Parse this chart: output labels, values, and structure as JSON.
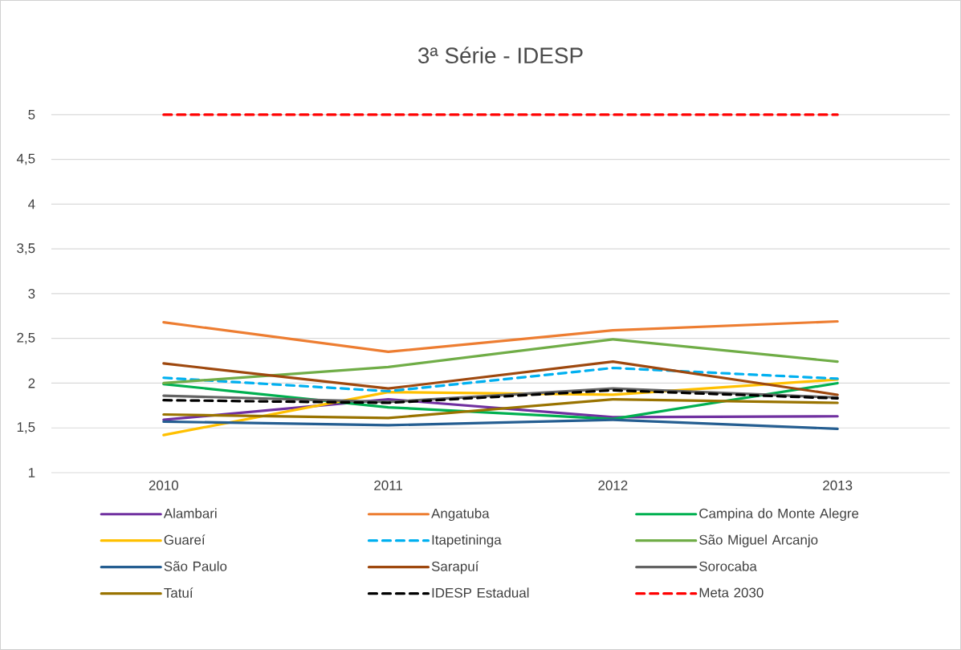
{
  "chart_data": {
    "type": "line",
    "title": "3ª Série - IDESP",
    "categories": [
      "2010",
      "2011",
      "2012",
      "2013"
    ],
    "ylim": [
      1,
      5
    ],
    "yticks": [
      {
        "value": 1,
        "label": "1"
      },
      {
        "value": 1.5,
        "label": "1,5"
      },
      {
        "value": 2,
        "label": "2"
      },
      {
        "value": 2.5,
        "label": "2,5"
      },
      {
        "value": 3,
        "label": "3"
      },
      {
        "value": 3.5,
        "label": "3,5"
      },
      {
        "value": 4,
        "label": "4"
      },
      {
        "value": 4.5,
        "label": "4,5"
      },
      {
        "value": 5,
        "label": "5"
      }
    ],
    "grid": "y",
    "legend": "bottom",
    "line_style": "solid",
    "series": [
      {
        "name": "Alambari",
        "color": "#7030a0",
        "values": [
          1.59,
          1.82,
          1.62,
          1.63
        ]
      },
      {
        "name": "Angatuba",
        "color": "#ed7d31",
        "values": [
          2.68,
          2.35,
          2.59,
          2.69
        ]
      },
      {
        "name": "Campina do Monte Alegre",
        "color": "#00b050",
        "values": [
          1.99,
          1.73,
          1.6,
          2.0
        ]
      },
      {
        "name": "Guareí",
        "color": "#ffc000",
        "values": [
          1.42,
          1.9,
          1.87,
          2.04
        ]
      },
      {
        "name": "Itapetininga",
        "color": "#00b0f0",
        "line_style": "dashed",
        "values": [
          2.06,
          1.91,
          2.17,
          2.05
        ]
      },
      {
        "name": "São Miguel Arcanjo",
        "color": "#70ad47",
        "values": [
          2.0,
          2.18,
          2.49,
          2.24
        ]
      },
      {
        "name": "São Paulo",
        "color": "#255e91",
        "values": [
          1.57,
          1.53,
          1.59,
          1.49
        ]
      },
      {
        "name": "Sarapuí",
        "color": "#9e480e",
        "values": [
          2.22,
          1.94,
          2.24,
          1.87
        ]
      },
      {
        "name": "Sorocaba",
        "color": "#636363",
        "values": [
          1.86,
          1.79,
          1.94,
          1.84
        ]
      },
      {
        "name": "Tatuí",
        "color": "#997300",
        "values": [
          1.65,
          1.61,
          1.82,
          1.78
        ]
      },
      {
        "name": "IDESP Estadual",
        "color": "#000000",
        "line_style": "dashed",
        "values": [
          1.81,
          1.78,
          1.92,
          1.83
        ]
      },
      {
        "name": "Meta 2030",
        "color": "#ff0000",
        "line_style": "dashed",
        "values": [
          5,
          5,
          5,
          5
        ]
      }
    ]
  }
}
